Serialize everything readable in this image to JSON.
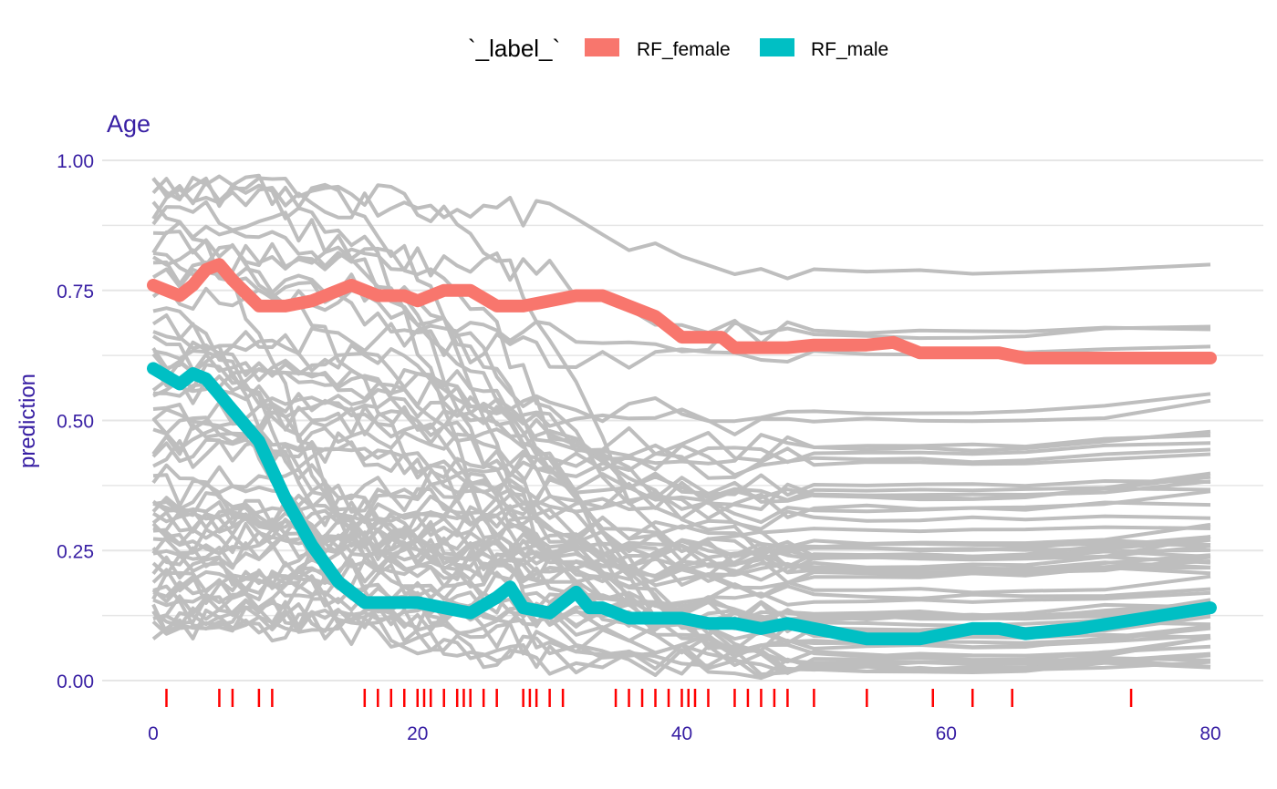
{
  "chart_data": {
    "type": "line",
    "title": "Age",
    "xlabel": "",
    "ylabel": "prediction",
    "xlim": [
      0,
      80
    ],
    "ylim": [
      0,
      1
    ],
    "x_ticks": [
      "0",
      "20",
      "40",
      "60",
      "80"
    ],
    "y_ticks": [
      "0.00",
      "0.25",
      "0.50",
      "0.75",
      "1.00"
    ],
    "grid": true,
    "legend": {
      "position": "top",
      "title": "`_label_`",
      "entries": [
        {
          "name": "RF_female",
          "color": "#F8766D"
        },
        {
          "name": "RF_male",
          "color": "#00BFC4"
        }
      ]
    },
    "colors": {
      "ice_lines": "#BEBEBE",
      "rug": "#FF0000",
      "axis_text": "#371EA3",
      "grid": "#E6E6E6"
    },
    "series": [
      {
        "name": "RF_female",
        "color": "#F8766D",
        "x": [
          0,
          2,
          3,
          4,
          5,
          6,
          8,
          10,
          12,
          14,
          15,
          17,
          18,
          19,
          20,
          22,
          24,
          26,
          28,
          30,
          32,
          34,
          35,
          36,
          38,
          40,
          42,
          43,
          44,
          46,
          48,
          50,
          52,
          54,
          56,
          58,
          62,
          64,
          66,
          70,
          75,
          80
        ],
        "values": [
          0.76,
          0.74,
          0.76,
          0.79,
          0.8,
          0.77,
          0.72,
          0.72,
          0.73,
          0.75,
          0.76,
          0.74,
          0.74,
          0.74,
          0.73,
          0.75,
          0.75,
          0.72,
          0.72,
          0.73,
          0.74,
          0.74,
          0.73,
          0.72,
          0.7,
          0.66,
          0.66,
          0.66,
          0.64,
          0.64,
          0.64,
          0.645,
          0.645,
          0.645,
          0.65,
          0.63,
          0.63,
          0.63,
          0.62,
          0.62,
          0.62,
          0.62
        ]
      },
      {
        "name": "RF_male",
        "color": "#00BFC4",
        "x": [
          0,
          2,
          3,
          4,
          6,
          8,
          10,
          12,
          14,
          16,
          18,
          20,
          22,
          24,
          26,
          27,
          28,
          30,
          32,
          33,
          34,
          36,
          38,
          40,
          42,
          44,
          46,
          48,
          50,
          52,
          54,
          56,
          58,
          60,
          62,
          64,
          66,
          70,
          75,
          80
        ],
        "values": [
          0.6,
          0.57,
          0.59,
          0.58,
          0.52,
          0.46,
          0.35,
          0.26,
          0.19,
          0.15,
          0.15,
          0.15,
          0.14,
          0.13,
          0.16,
          0.18,
          0.14,
          0.13,
          0.17,
          0.14,
          0.14,
          0.12,
          0.12,
          0.12,
          0.11,
          0.11,
          0.1,
          0.11,
          0.1,
          0.09,
          0.08,
          0.08,
          0.08,
          0.09,
          0.1,
          0.1,
          0.09,
          0.1,
          0.12,
          0.14
        ]
      }
    ],
    "rug_x": [
      1,
      5,
      6,
      8,
      9,
      16,
      17,
      18,
      19,
      20,
      20.5,
      21,
      22,
      23,
      23.5,
      24,
      25,
      26,
      28,
      28.5,
      29,
      30,
      31,
      35,
      36,
      37,
      38,
      39,
      40,
      40.5,
      41,
      42,
      44,
      45,
      46,
      47,
      48,
      50,
      54,
      59,
      62,
      65,
      74
    ]
  }
}
